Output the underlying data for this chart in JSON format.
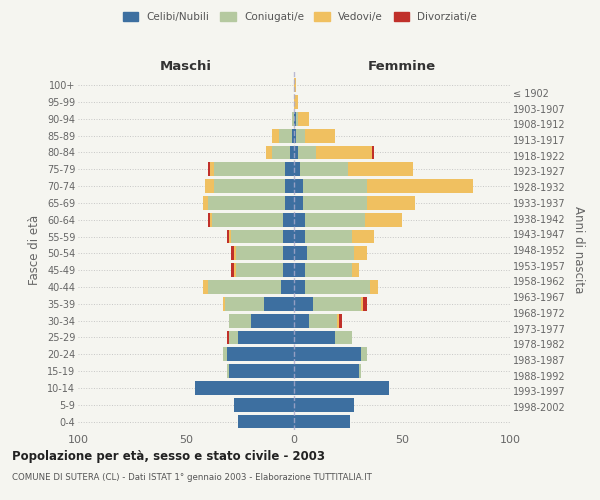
{
  "age_groups": [
    "0-4",
    "5-9",
    "10-14",
    "15-19",
    "20-24",
    "25-29",
    "30-34",
    "35-39",
    "40-44",
    "45-49",
    "50-54",
    "55-59",
    "60-64",
    "65-69",
    "70-74",
    "75-79",
    "80-84",
    "85-89",
    "90-94",
    "95-99",
    "100+"
  ],
  "birth_years": [
    "1998-2002",
    "1993-1997",
    "1988-1992",
    "1983-1987",
    "1978-1982",
    "1973-1977",
    "1968-1972",
    "1963-1967",
    "1958-1962",
    "1953-1957",
    "1948-1952",
    "1943-1947",
    "1938-1942",
    "1933-1937",
    "1928-1932",
    "1923-1927",
    "1918-1922",
    "1913-1917",
    "1908-1912",
    "1903-1907",
    "≤ 1902"
  ],
  "maschi": {
    "celibi": [
      26,
      28,
      46,
      30,
      31,
      26,
      20,
      14,
      6,
      5,
      5,
      5,
      5,
      4,
      4,
      4,
      2,
      1,
      0,
      0,
      0
    ],
    "coniugati": [
      0,
      0,
      0,
      1,
      2,
      4,
      10,
      18,
      34,
      22,
      22,
      24,
      33,
      36,
      33,
      33,
      8,
      6,
      1,
      0,
      0
    ],
    "vedovi": [
      0,
      0,
      0,
      0,
      0,
      0,
      0,
      1,
      2,
      1,
      1,
      1,
      1,
      2,
      4,
      2,
      3,
      3,
      0,
      0,
      0
    ],
    "divorziati": [
      0,
      0,
      0,
      0,
      0,
      1,
      0,
      0,
      0,
      1,
      1,
      1,
      1,
      0,
      0,
      1,
      0,
      0,
      0,
      0,
      0
    ]
  },
  "femmine": {
    "nubili": [
      26,
      28,
      44,
      30,
      31,
      19,
      7,
      9,
      5,
      5,
      6,
      5,
      5,
      4,
      4,
      3,
      2,
      1,
      1,
      0,
      0
    ],
    "coniugate": [
      0,
      0,
      0,
      1,
      3,
      8,
      13,
      22,
      30,
      22,
      22,
      22,
      28,
      30,
      30,
      22,
      8,
      4,
      1,
      0,
      0
    ],
    "vedove": [
      0,
      0,
      0,
      0,
      0,
      0,
      1,
      1,
      4,
      3,
      6,
      10,
      17,
      22,
      49,
      30,
      26,
      14,
      5,
      2,
      1
    ],
    "divorziate": [
      0,
      0,
      0,
      0,
      0,
      0,
      1,
      2,
      0,
      0,
      0,
      0,
      0,
      0,
      0,
      0,
      1,
      0,
      0,
      0,
      0
    ]
  },
  "colors": {
    "celibi": "#3d6fa0",
    "coniugati": "#b5c9a0",
    "vedovi": "#f0c060",
    "divorziati": "#c0302a"
  },
  "xlim": [
    -100,
    100
  ],
  "xticks": [
    -100,
    -50,
    0,
    50,
    100
  ],
  "xticklabels": [
    "100",
    "50",
    "0",
    "50",
    "100"
  ],
  "title1": "Popolazione per età, sesso e stato civile - 2003",
  "title2": "COMUNE DI SUTERA (CL) - Dati ISTAT 1° gennaio 2003 - Elaborazione TUTTITALIA.IT",
  "ylabel_left": "Fasce di età",
  "ylabel_right": "Anni di nascita",
  "label_maschi": "Maschi",
  "label_femmine": "Femmine",
  "legend_labels": [
    "Celibi/Nubili",
    "Coniugati/e",
    "Vedovi/e",
    "Divorziati/e"
  ],
  "background_color": "#f5f5f0"
}
